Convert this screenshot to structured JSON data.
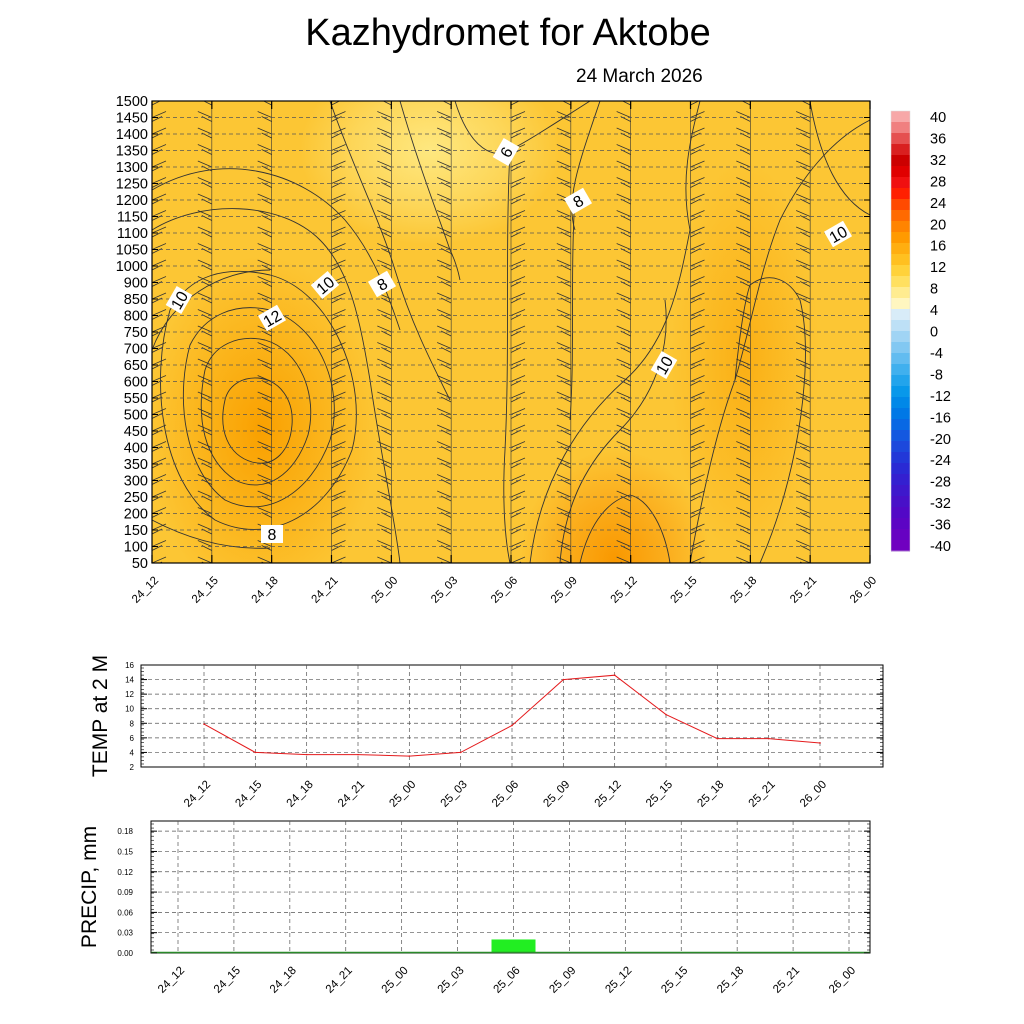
{
  "header": {
    "title": "Kazhydromet  for Aktobe",
    "date": "24 March 2026"
  },
  "chart_data": [
    {
      "type": "heatmap",
      "name": "vertical-cross-section",
      "x_categories": [
        "24_12",
        "24_15",
        "24_18",
        "24_21",
        "25_00",
        "25_03",
        "25_06",
        "25_09",
        "25_12",
        "25_15",
        "25_18",
        "25_21",
        "26_00"
      ],
      "y_levels": [
        50,
        100,
        150,
        200,
        250,
        300,
        350,
        400,
        450,
        500,
        550,
        600,
        650,
        700,
        750,
        800,
        850,
        900,
        1000,
        1050,
        1100,
        1150,
        1200,
        1250,
        1300,
        1350,
        1400,
        1450,
        1500
      ],
      "colorbar": {
        "labels": [
          "40",
          "36",
          "32",
          "28",
          "24",
          "20",
          "16",
          "12",
          "8",
          "4",
          "0",
          "-4",
          "-8",
          "-12",
          "-16",
          "-20",
          "-24",
          "-28",
          "-32",
          "-36",
          "-40"
        ],
        "min": -40,
        "max": 40,
        "step": 4
      },
      "contour_labels": [
        "10",
        "12",
        "10",
        "8",
        "6",
        "8",
        "10",
        "10",
        "8"
      ],
      "grid": true
    },
    {
      "type": "line",
      "name": "temperature-2m",
      "ylabel": "TEMP at 2 M",
      "x": [
        "24_12",
        "24_15",
        "24_18",
        "24_21",
        "25_00",
        "25_03",
        "25_06",
        "25_09",
        "25_12",
        "25_15",
        "25_18",
        "25_21",
        "26_00"
      ],
      "values": [
        7.9,
        4.0,
        3.7,
        3.7,
        3.5,
        4.0,
        7.7,
        14.0,
        14.6,
        9.2,
        5.9,
        5.9,
        5.3
      ],
      "ylim": [
        2,
        16
      ],
      "yticks": [
        "16",
        "14",
        "12",
        "10",
        "8",
        "6",
        "4",
        "2"
      ],
      "line_color": "#e41a1c",
      "grid": true
    },
    {
      "type": "bar",
      "name": "precipitation",
      "ylabel": "PRECIP, mm",
      "categories": [
        "24_12",
        "24_15",
        "24_18",
        "24_21",
        "25_00",
        "25_03",
        "25_06",
        "25_09",
        "25_12",
        "25_15",
        "25_18",
        "25_21",
        "26_00"
      ],
      "values": [
        0,
        0,
        0,
        0,
        0,
        0,
        0.02,
        0,
        0,
        0,
        0,
        0,
        0
      ],
      "ylim": [
        0,
        0.195
      ],
      "yticks": [
        "0.18",
        "0.15",
        "0.12",
        "0.09",
        "0.06",
        "0.03",
        "0.00"
      ],
      "bar_color": "#22ee22",
      "grid": true
    }
  ]
}
